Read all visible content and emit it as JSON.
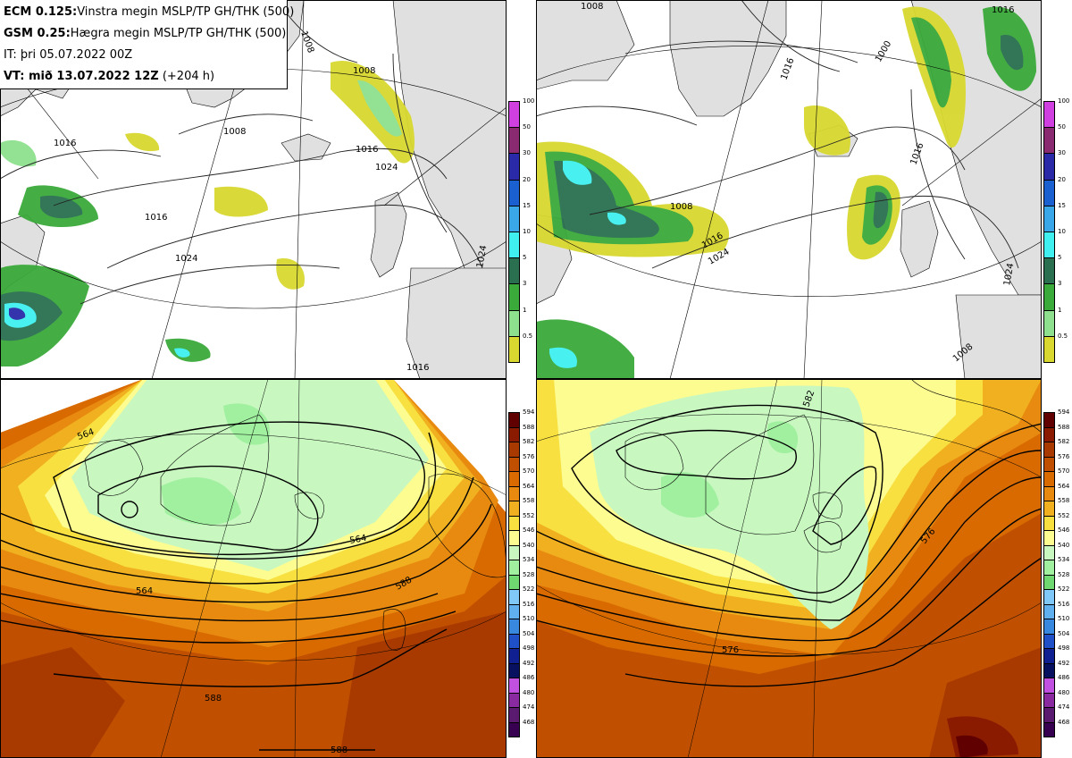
{
  "header": {
    "line1_model": "ECM 0.125:",
    "line1_text": "Vinstra megin MSLP/TP GH/THK (500)",
    "line2_model": "GSM 0.25:",
    "line2_text": "Hægra megin MSLP/TP GH/THK (500)",
    "line3": "IT: þri 05.07.2022 00Z",
    "line4_label": "VT:",
    "line4_text": " mið 13.07.2022 12Z",
    "line4_suffix": " (+204 h)"
  },
  "precip_legend": {
    "labels": [
      "100",
      "50",
      "30",
      "20",
      "15",
      "10",
      "5",
      "3",
      "1",
      "0.5"
    ],
    "colors": [
      "#d040e0",
      "#8a2a70",
      "#2a2aa8",
      "#1a60d0",
      "#3aa8e8",
      "#40f0f0",
      "#2a7050",
      "#3aaa3a",
      "#8ee08e",
      "#d8d830"
    ]
  },
  "thickness_legend": {
    "labels": [
      "594",
      "588",
      "582",
      "576",
      "570",
      "564",
      "558",
      "552",
      "546",
      "540",
      "534",
      "528",
      "522",
      "516",
      "510",
      "504",
      "498",
      "492",
      "486",
      "480",
      "474",
      "468"
    ],
    "colors": [
      "#600000",
      "#8a1a00",
      "#a83a00",
      "#c05000",
      "#d86a00",
      "#e88a10",
      "#f0b020",
      "#f8e040",
      "#fcfc90",
      "#c8f8c0",
      "#a0f0a0",
      "#70d870",
      "#80c8f8",
      "#60b0f0",
      "#3888e0",
      "#2050c8",
      "#102090",
      "#081060",
      "#c050e0",
      "#8a2aa0",
      "#5a1a70",
      "#380050"
    ]
  },
  "maps": {
    "ecm_mslp_labels": [
      "1008",
      "1008",
      "1008",
      "1016",
      "1016",
      "1024",
      "1016",
      "1024",
      "1024",
      "1016"
    ],
    "gsm_mslp_labels": [
      "1008",
      "1016",
      "1000",
      "1016",
      "1024",
      "1008",
      "1016",
      "1016",
      "1024",
      "1008"
    ],
    "ecm_gh_labels": [
      "564",
      "564",
      "564",
      "588",
      "588",
      "588"
    ],
    "gsm_gh_labels": [
      "582",
      "576",
      "576"
    ]
  }
}
